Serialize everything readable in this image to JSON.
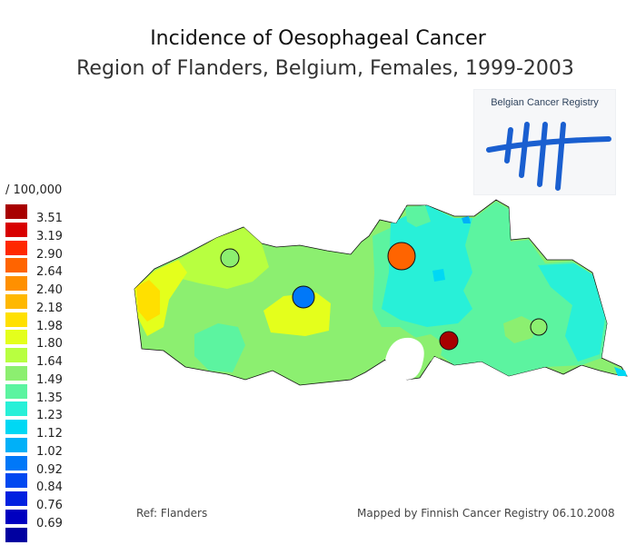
{
  "title": "Incidence of Oesophageal Cancer",
  "subtitle": "Region of Flanders, Belgium, Females, 1999-2003",
  "logo": {
    "text": "Belgian Cancer Registry"
  },
  "legend": {
    "unit": "/ 100,000",
    "items": [
      {
        "label": "3.51",
        "color": "#a80000"
      },
      {
        "label": "3.19",
        "color": "#d80000"
      },
      {
        "label": "2.90",
        "color": "#ff2800"
      },
      {
        "label": "2.64",
        "color": "#ff6400"
      },
      {
        "label": "2.40",
        "color": "#ff9000"
      },
      {
        "label": "2.18",
        "color": "#ffb800"
      },
      {
        "label": "1.98",
        "color": "#ffe000"
      },
      {
        "label": "1.80",
        "color": "#e4ff1c"
      },
      {
        "label": "1.64",
        "color": "#b8ff40"
      },
      {
        "label": "1.49",
        "color": "#8cef70"
      },
      {
        "label": "1.35",
        "color": "#5cf4a0"
      },
      {
        "label": "1.23",
        "color": "#28f0d8"
      },
      {
        "label": "1.12",
        "color": "#00d8f4"
      },
      {
        "label": "1.02",
        "color": "#00b0f8"
      },
      {
        "label": "0.92",
        "color": "#0078f8"
      },
      {
        "label": "0.84",
        "color": "#0048f0"
      },
      {
        "label": "0.76",
        "color": "#0020e0"
      },
      {
        "label": "0.69",
        "color": "#0000c0"
      },
      {
        "label": "",
        "color": "#0000a0"
      }
    ]
  },
  "markers": [
    {
      "color": "#8cef70"
    },
    {
      "color": "#0078f8"
    },
    {
      "color": "#ff6400"
    },
    {
      "color": "#a80000"
    },
    {
      "color": "#8cef70"
    }
  ],
  "ref": "Ref: Flanders",
  "credit": "Mapped by Finnish Cancer Registry 06.10.2008"
}
